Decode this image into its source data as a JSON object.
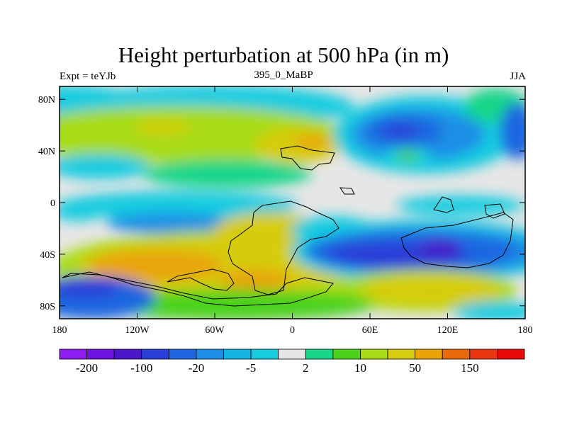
{
  "title": "Height perturbation at 500 hPa (in m)",
  "left_string": "Expt = teYJb",
  "center_string": "395_0_MaBP",
  "right_string": "JJA",
  "y_ticks": [
    {
      "label": "80N",
      "lat": 80
    },
    {
      "label": "40N",
      "lat": 40
    },
    {
      "label": "0",
      "lat": 0
    },
    {
      "label": "40S",
      "lat": -40
    },
    {
      "label": "80S",
      "lat": -80
    }
  ],
  "x_ticks": [
    {
      "label": "180",
      "lon": -180
    },
    {
      "label": "120W",
      "lon": -120
    },
    {
      "label": "60W",
      "lon": -60
    },
    {
      "label": "0",
      "lon": 0
    },
    {
      "label": "60E",
      "lon": 60
    },
    {
      "label": "120E",
      "lon": 120
    },
    {
      "label": "180",
      "lon": 180
    }
  ],
  "colorbar": {
    "colors": [
      "#8d1df0",
      "#6e14e0",
      "#4a16c8",
      "#2a3ed8",
      "#1f66e0",
      "#1e8fe6",
      "#13b4e2",
      "#16cce0",
      "#e6e6e6",
      "#19d68a",
      "#4cd21c",
      "#a8dc14",
      "#d6cc10",
      "#e8a408",
      "#e86a0a",
      "#e83610",
      "#e80a0a"
    ],
    "labels": [
      {
        "text": "-200",
        "index": 1
      },
      {
        "text": "-100",
        "index": 3
      },
      {
        "text": "-20",
        "index": 5
      },
      {
        "text": "-5",
        "index": 7
      },
      {
        "text": "2",
        "index": 9
      },
      {
        "text": "10",
        "index": 11
      },
      {
        "text": "50",
        "index": 13
      },
      {
        "text": "150",
        "index": 15
      }
    ]
  }
}
